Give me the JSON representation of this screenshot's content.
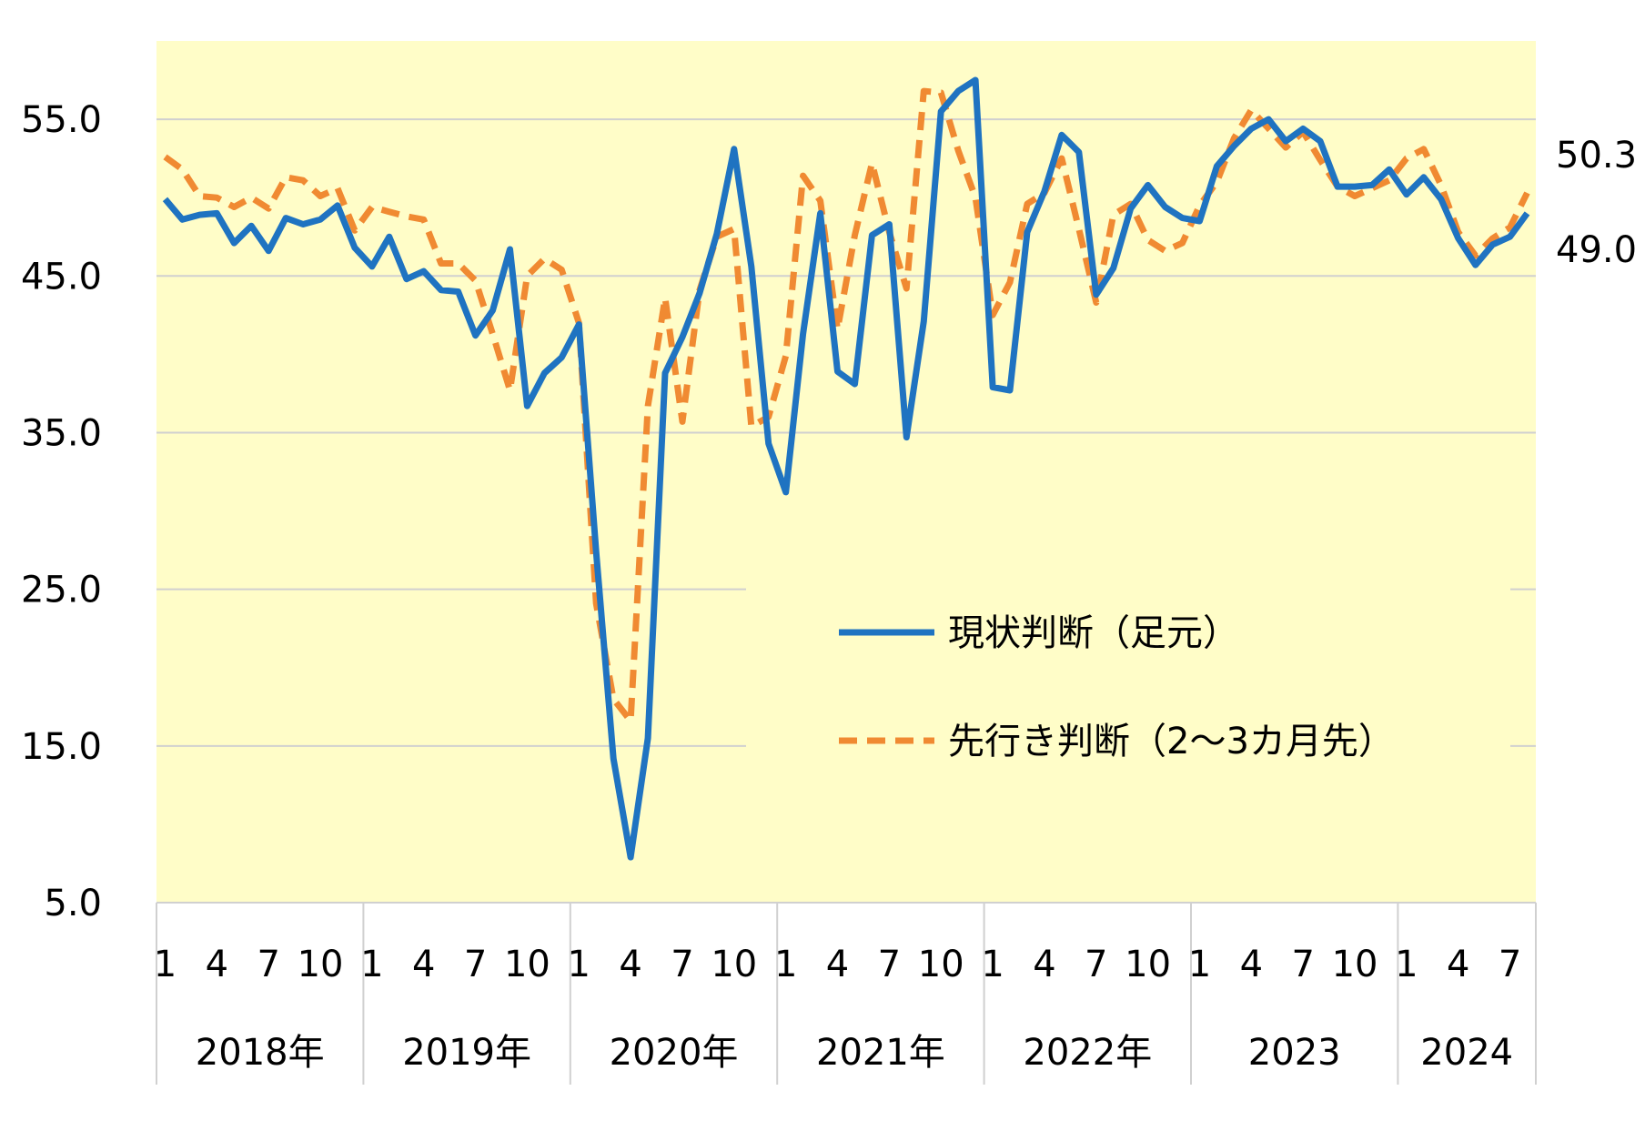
{
  "chart_data": {
    "type": "line",
    "ylim": [
      5,
      60
    ],
    "yticks": [
      "5.0",
      "15.0",
      "25.0",
      "35.0",
      "45.0",
      "55.0"
    ],
    "grid": true,
    "plot_background": "#FFFDC8",
    "month_labels": [
      "1",
      "4",
      "7",
      "10"
    ],
    "month_label_positions": [
      1,
      4,
      7,
      10
    ],
    "years": [
      {
        "label": "2018年",
        "months": 12
      },
      {
        "label": "2019年",
        "months": 12
      },
      {
        "label": "2020年",
        "months": 12
      },
      {
        "label": "2021年",
        "months": 12
      },
      {
        "label": "2022年",
        "months": 12
      },
      {
        "label": "2023",
        "months": 12
      },
      {
        "label": "2024",
        "months": 8
      }
    ],
    "legend_position": "center-right",
    "series": [
      {
        "name": "現状判断（足元）",
        "color": "#1F73C1",
        "dash": "solid",
        "end_label": "49.0",
        "values": [
          49.9,
          48.6,
          48.9,
          49.0,
          47.1,
          48.2,
          46.6,
          48.7,
          48.3,
          48.6,
          49.5,
          46.8,
          45.6,
          47.5,
          44.8,
          45.3,
          44.1,
          44.0,
          41.2,
          42.8,
          46.7,
          36.7,
          38.8,
          39.8,
          41.9,
          27.4,
          14.2,
          7.9,
          15.5,
          38.8,
          41.1,
          43.9,
          47.7,
          53.1,
          45.6,
          34.3,
          31.2,
          41.3,
          49.0,
          38.9,
          38.1,
          47.6,
          48.3,
          34.7,
          42.1,
          55.5,
          56.8,
          57.5,
          37.9,
          37.7,
          47.8,
          50.4,
          54.0,
          52.9,
          43.8,
          45.5,
          49.3,
          50.8,
          49.4,
          48.7,
          48.5,
          52.0,
          53.3,
          54.4,
          55.0,
          53.6,
          54.4,
          53.6,
          50.7,
          50.7,
          50.8,
          51.8,
          50.2,
          51.3,
          49.9,
          47.4,
          45.7,
          47.0,
          47.5,
          49.0
        ]
      },
      {
        "name": "先行き判断（2～3カ月先）",
        "color": "#F08A32",
        "dash": "dashed",
        "end_label": "50.3",
        "values": [
          52.6,
          51.8,
          50.1,
          50.0,
          49.4,
          50.0,
          49.3,
          51.3,
          51.1,
          50.1,
          50.6,
          47.9,
          49.4,
          49.1,
          48.8,
          48.6,
          45.8,
          45.8,
          44.7,
          41.3,
          37.7,
          45.0,
          46.1,
          45.4,
          42.0,
          24.1,
          18.0,
          16.6,
          36.7,
          43.6,
          35.7,
          44.1,
          47.5,
          48.0,
          35.4,
          36.0,
          39.9,
          51.4,
          49.8,
          41.6,
          47.6,
          52.2,
          47.8,
          44.2,
          56.8,
          56.7,
          53.0,
          50.0,
          42.5,
          44.6,
          49.6,
          50.3,
          52.5,
          48.0,
          43.3,
          48.9,
          49.6,
          47.3,
          46.6,
          47.1,
          49.5,
          51.0,
          53.8,
          55.6,
          54.4,
          53.2,
          54.2,
          52.4,
          50.7,
          50.1,
          50.6,
          51.1,
          52.5,
          53.1,
          50.8,
          47.8,
          46.3,
          47.4,
          48.1,
          50.3
        ]
      }
    ]
  }
}
